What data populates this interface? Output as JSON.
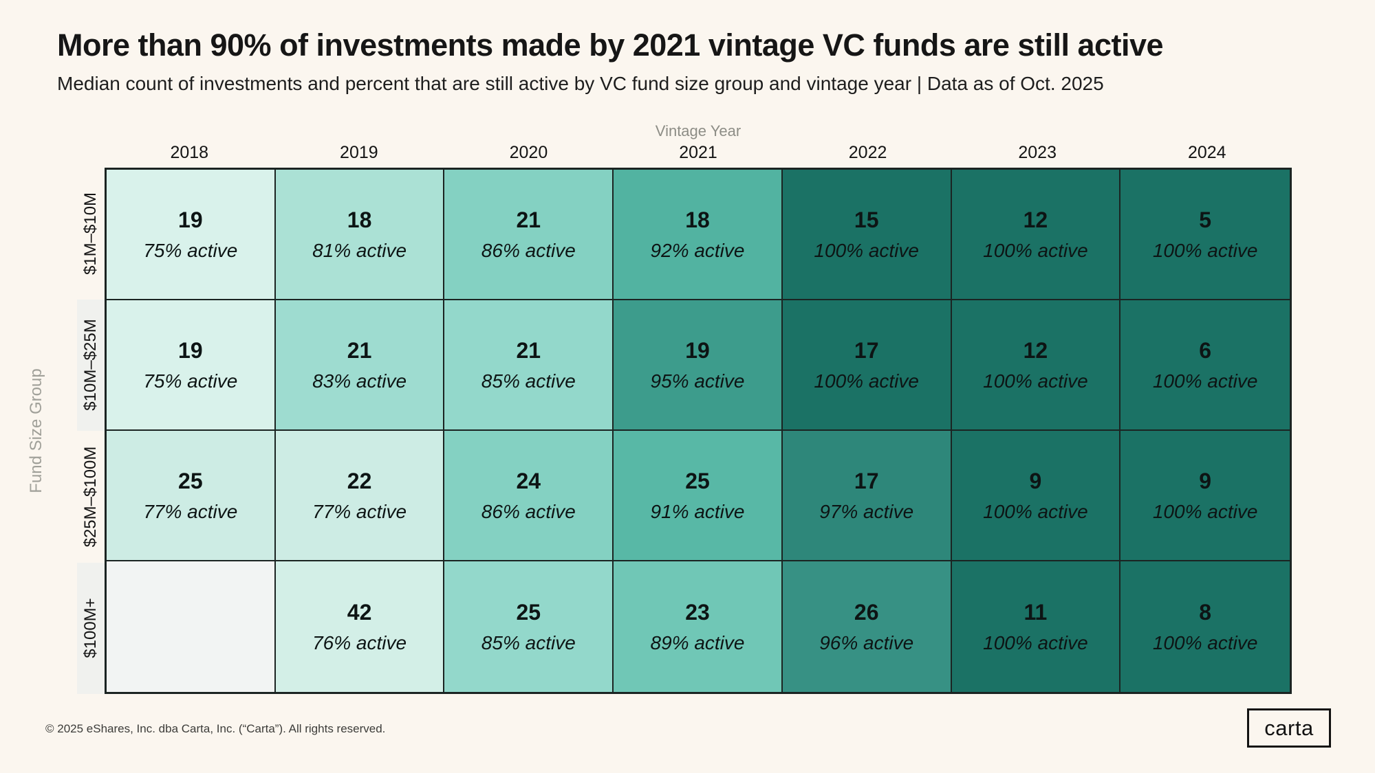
{
  "title": "More than 90% of investments made by 2021 vintage VC funds are still active",
  "subtitle": "Median count of investments and percent that are still active by VC fund size group and vintage year | Data as of Oct. 2025",
  "axis": {
    "x_title": "Vintage Year",
    "y_title": "Fund Size Group"
  },
  "years": [
    "2018",
    "2019",
    "2020",
    "2021",
    "2022",
    "2023",
    "2024"
  ],
  "heatmap": {
    "rows": [
      {
        "label": "$1M–$10M",
        "cells": [
          {
            "count": "19",
            "active": "75% active",
            "color": "#d9f2eb"
          },
          {
            "count": "18",
            "active": "81% active",
            "color": "#abe1d5"
          },
          {
            "count": "21",
            "active": "86% active",
            "color": "#84d1c2"
          },
          {
            "count": "18",
            "active": "92% active",
            "color": "#52b3a1"
          },
          {
            "count": "15",
            "active": "100% active",
            "color": "#1b7265"
          },
          {
            "count": "12",
            "active": "100% active",
            "color": "#1b7265"
          },
          {
            "count": "5",
            "active": "100% active",
            "color": "#1b7265"
          }
        ]
      },
      {
        "label": "$10M–$25M",
        "cells": [
          {
            "count": "19",
            "active": "75% active",
            "color": "#d9f2eb"
          },
          {
            "count": "21",
            "active": "83% active",
            "color": "#9edcd0"
          },
          {
            "count": "21",
            "active": "85% active",
            "color": "#93d8cb"
          },
          {
            "count": "19",
            "active": "95% active",
            "color": "#3d9c8c"
          },
          {
            "count": "17",
            "active": "100% active",
            "color": "#1b7265"
          },
          {
            "count": "12",
            "active": "100% active",
            "color": "#1b7265"
          },
          {
            "count": "6",
            "active": "100% active",
            "color": "#1b7265"
          }
        ]
      },
      {
        "label": "$25M–$100M",
        "cells": [
          {
            "count": "25",
            "active": "77% active",
            "color": "#cdece4"
          },
          {
            "count": "22",
            "active": "77% active",
            "color": "#cdece4"
          },
          {
            "count": "24",
            "active": "86% active",
            "color": "#84d1c2"
          },
          {
            "count": "25",
            "active": "91% active",
            "color": "#58b8a6"
          },
          {
            "count": "17",
            "active": "97% active",
            "color": "#2e877a"
          },
          {
            "count": "9",
            "active": "100% active",
            "color": "#1b7265"
          },
          {
            "count": "9",
            "active": "100% active",
            "color": "#1b7265"
          }
        ]
      },
      {
        "label": "$100M+",
        "cells": [
          {
            "count": "",
            "active": "",
            "color": "#f2f4f3"
          },
          {
            "count": "42",
            "active": "76% active",
            "color": "#d3efe7"
          },
          {
            "count": "25",
            "active": "85% active",
            "color": "#93d8cb"
          },
          {
            "count": "23",
            "active": "89% active",
            "color": "#70c7b6"
          },
          {
            "count": "26",
            "active": "96% active",
            "color": "#379184"
          },
          {
            "count": "11",
            "active": "100% active",
            "color": "#1b7265"
          },
          {
            "count": "8",
            "active": "100% active",
            "color": "#1b7265"
          }
        ]
      }
    ]
  },
  "footer": {
    "copyright": "© 2025 eShares, Inc. dba Carta, Inc. (“Carta”). All rights reserved.",
    "logo_text": "carta"
  },
  "colors": {
    "background": "#fbf6ef",
    "grid_line": "#1b2422",
    "scale_min": "#d9f2eb",
    "scale_max": "#1b7265",
    "empty_cell": "#f2f4f3",
    "label_alt_bg": "#f0f1ee",
    "muted_text": "#8d8d86"
  },
  "chart_data": {
    "type": "heatmap",
    "title": "More than 90% of investments made by 2021 vintage VC funds are still active",
    "subtitle": "Median count of investments and percent that are still active by VC fund size group and vintage year | Data as of Oct. 2025",
    "xlabel": "Vintage Year",
    "ylabel": "Fund Size Group",
    "columns": [
      "2018",
      "2019",
      "2020",
      "2021",
      "2022",
      "2023",
      "2024"
    ],
    "row_groups": [
      "$1M–$10M",
      "$10M–$25M",
      "$25M–$100M",
      "$100M+"
    ],
    "series": [
      {
        "row": "$1M–$10M",
        "median_investment_counts": [
          19,
          18,
          21,
          18,
          15,
          12,
          5
        ],
        "percent_active": [
          75,
          81,
          86,
          92,
          100,
          100,
          100
        ]
      },
      {
        "row": "$10M–$25M",
        "median_investment_counts": [
          19,
          21,
          21,
          19,
          17,
          12,
          6
        ],
        "percent_active": [
          75,
          83,
          85,
          95,
          100,
          100,
          100
        ]
      },
      {
        "row": "$25M–$100M",
        "median_investment_counts": [
          25,
          22,
          24,
          25,
          17,
          9,
          9
        ],
        "percent_active": [
          77,
          77,
          86,
          91,
          97,
          100,
          100
        ]
      },
      {
        "row": "$100M+",
        "median_investment_counts": [
          null,
          42,
          25,
          23,
          26,
          11,
          8
        ],
        "percent_active": [
          null,
          76,
          85,
          89,
          96,
          100,
          100
        ]
      }
    ],
    "color_encoding": "percent_active (light mint = low, dark teal = 100%)",
    "legend_position": "none",
    "grid": true
  }
}
